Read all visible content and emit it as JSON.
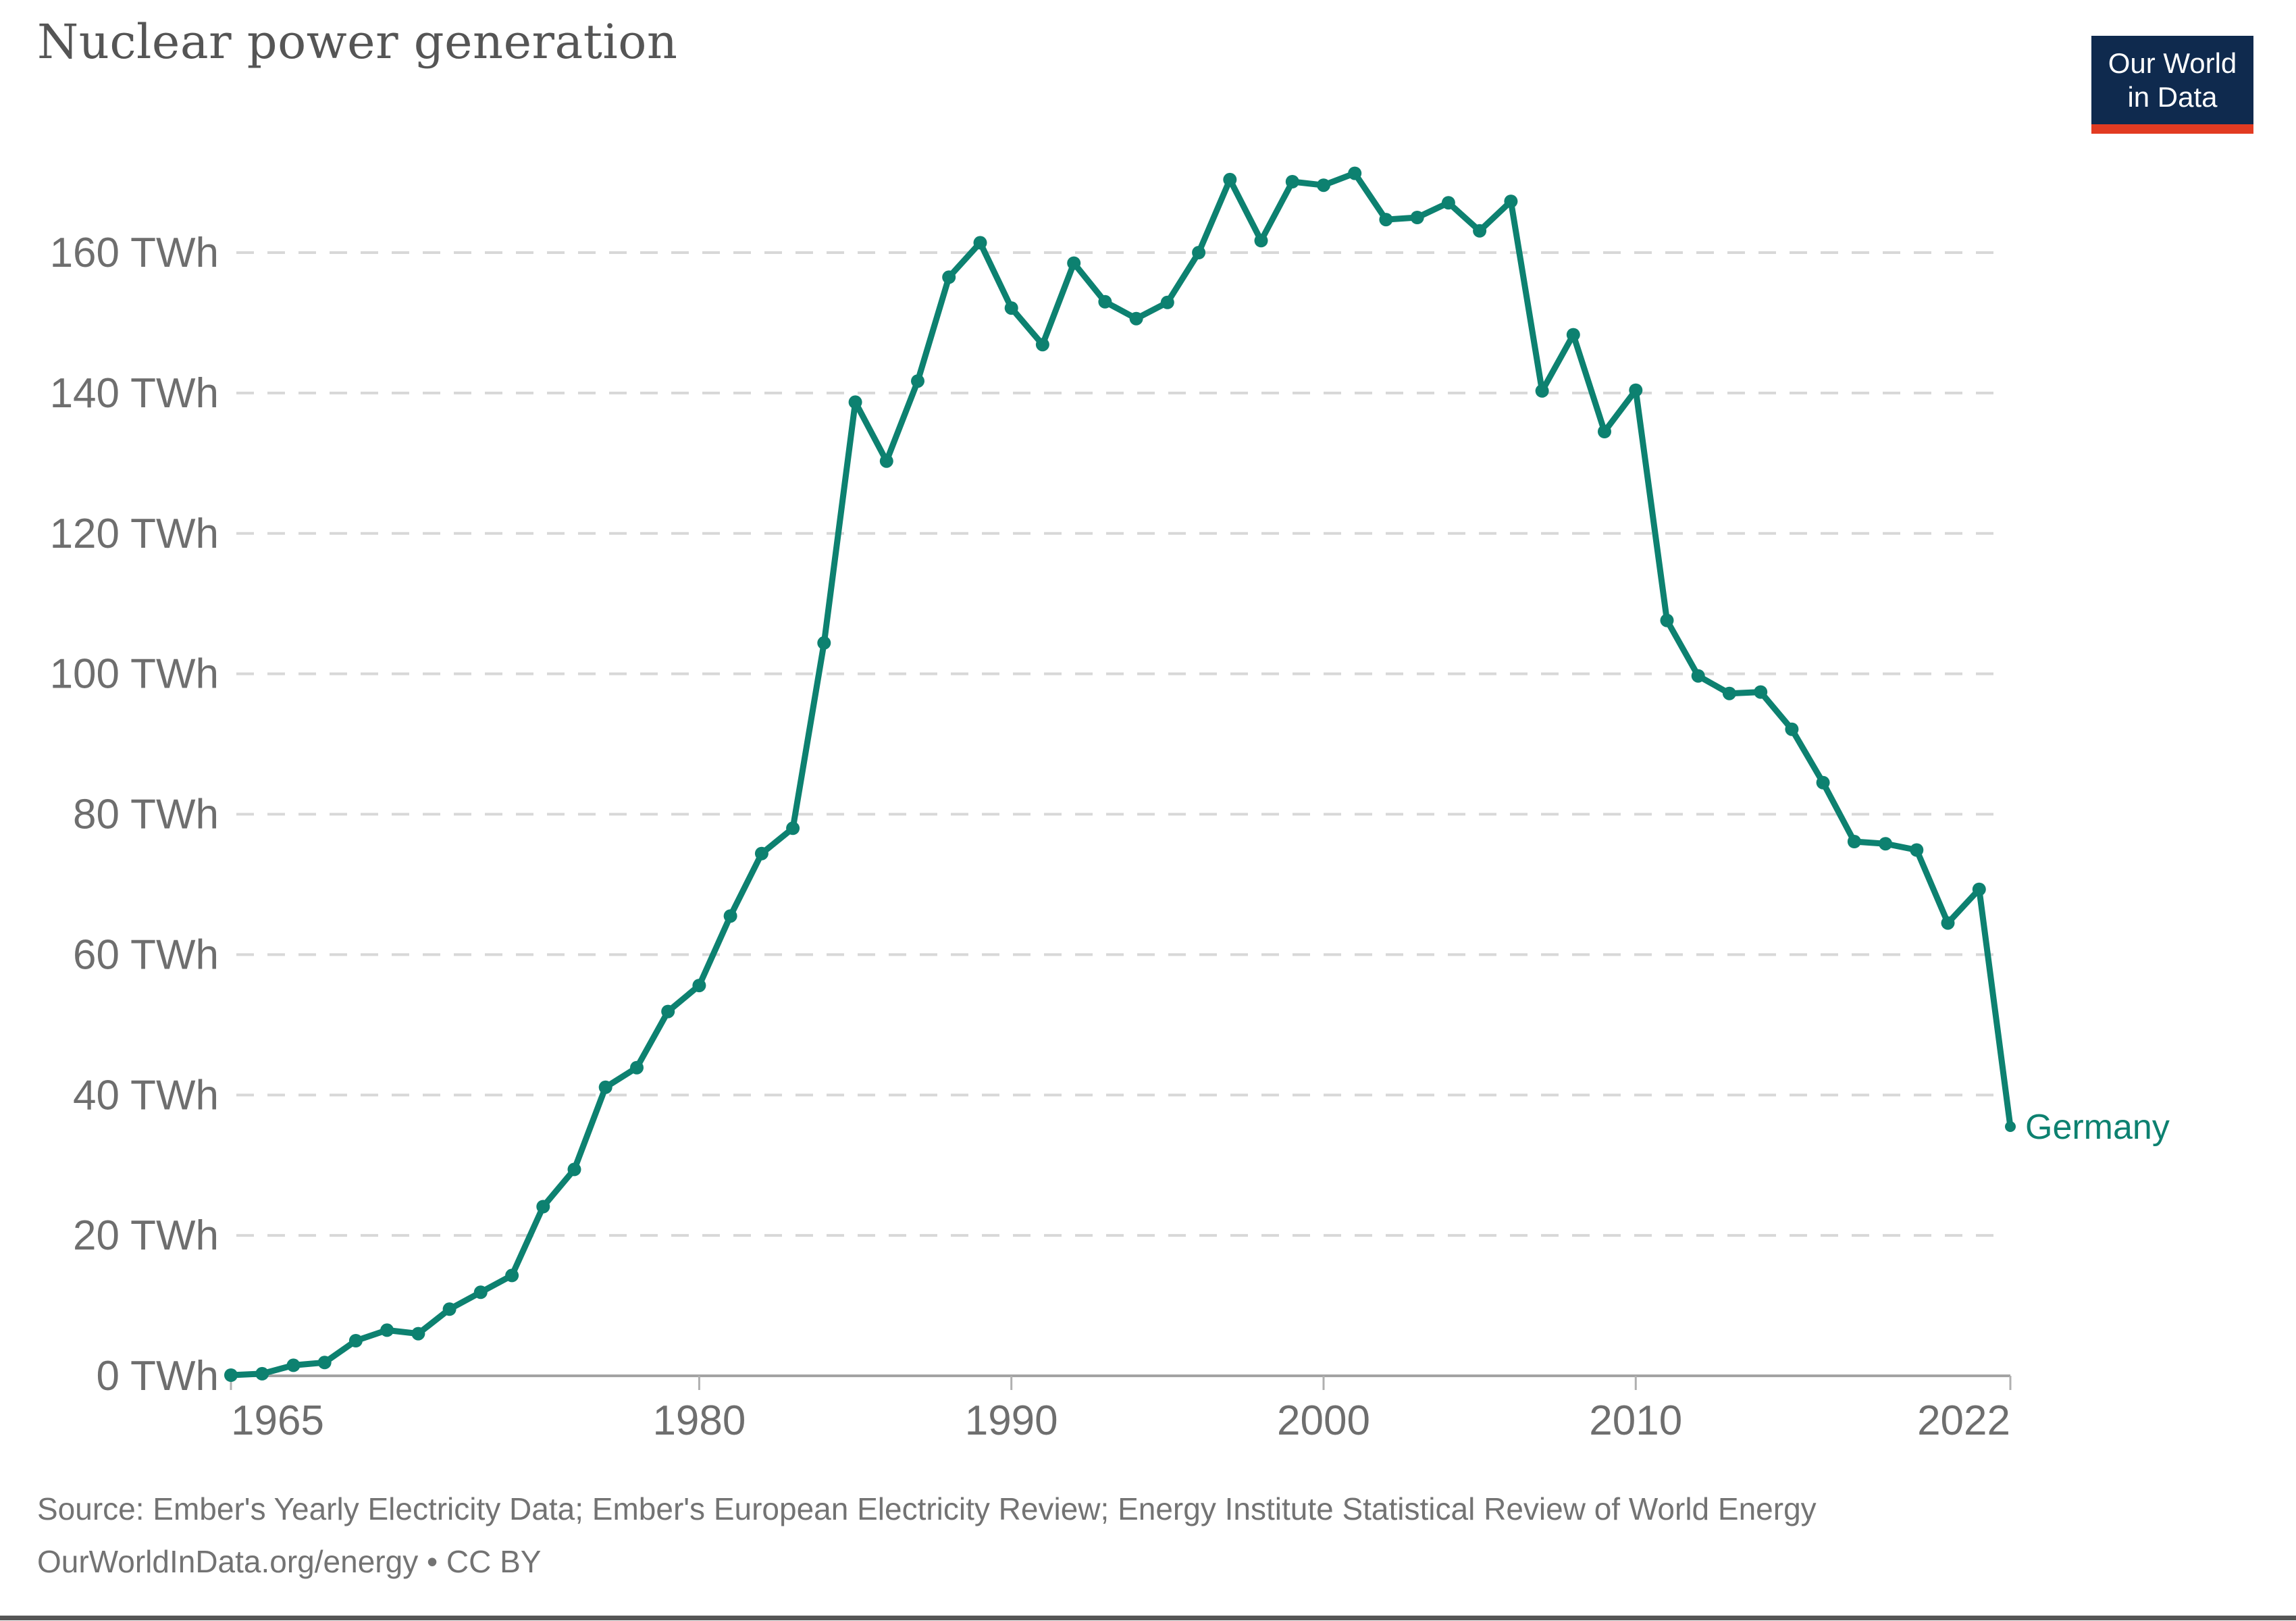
{
  "header": {
    "title": "Nuclear power generation"
  },
  "logo": {
    "line1": "Our World",
    "line2": "in Data",
    "bg_color": "#0f2a4e",
    "accent_color": "#e23b22"
  },
  "footer": {
    "source_line": "Source: Ember's Yearly Electricity Data; Ember's European Electricity Review; Energy Institute Statistical Review of World Energy",
    "license_line": "OurWorldInData.org/energy • CC BY"
  },
  "colors": {
    "series_teal": "#0d8170",
    "title_gray": "#555555",
    "axis_label_gray": "#6e6e6e",
    "gridline_gray": "#d8d8d8",
    "axis_line_gray": "#a3a3a3",
    "tick_gray": "#b0b0b0",
    "footer_gray": "#737373"
  },
  "chart_data": {
    "type": "line",
    "title": "Nuclear power generation",
    "xlabel": "",
    "ylabel": "",
    "unit_suffix": " TWh",
    "grid": "horizontal-dashed",
    "legend_position": "end-of-line-label",
    "xlim": [
      1965,
      2022
    ],
    "ylim": [
      0,
      172
    ],
    "x_ticks": [
      1965,
      1980,
      1990,
      2000,
      2010,
      2022
    ],
    "x_tick_labels": [
      "1965",
      "1980",
      "1990",
      "2000",
      "2010",
      "2022"
    ],
    "y_ticks": [
      0,
      20,
      40,
      60,
      80,
      100,
      120,
      140,
      160
    ],
    "y_tick_labels": [
      "0 TWh",
      "20 TWh",
      "40 TWh",
      "60 TWh",
      "80 TWh",
      "100 TWh",
      "120 TWh",
      "140 TWh",
      "160 TWh"
    ],
    "series": [
      {
        "name": "Germany",
        "end_label": "Germany",
        "color": "#0d8170",
        "x": [
          1965,
          1966,
          1967,
          1968,
          1969,
          1970,
          1971,
          1972,
          1973,
          1974,
          1975,
          1976,
          1977,
          1978,
          1979,
          1980,
          1981,
          1982,
          1983,
          1984,
          1985,
          1986,
          1987,
          1988,
          1989,
          1990,
          1991,
          1992,
          1993,
          1994,
          1995,
          1996,
          1997,
          1998,
          1999,
          2000,
          2001,
          2002,
          2003,
          2004,
          2005,
          2006,
          2007,
          2008,
          2009,
          2010,
          2011,
          2012,
          2013,
          2014,
          2015,
          2016,
          2017,
          2018,
          2019,
          2020,
          2021,
          2022
        ],
        "values": [
          0.1,
          0.3,
          1.5,
          1.9,
          5.0,
          6.5,
          6.0,
          9.5,
          11.9,
          14.3,
          24.1,
          29.4,
          41.1,
          43.9,
          51.9,
          55.6,
          65.5,
          74.4,
          78.0,
          104.4,
          138.7,
          130.3,
          141.7,
          156.5,
          161.4,
          152.1,
          146.9,
          158.5,
          153.0,
          150.6,
          152.9,
          160.0,
          170.4,
          161.7,
          170.1,
          169.6,
          171.3,
          164.7,
          165.0,
          167.1,
          163.1,
          167.3,
          140.3,
          148.3,
          134.5,
          140.4,
          107.6,
          99.7,
          97.2,
          97.4,
          92.1,
          84.5,
          76.1,
          75.8,
          74.9,
          64.5,
          69.3,
          35.5
        ]
      }
    ]
  }
}
